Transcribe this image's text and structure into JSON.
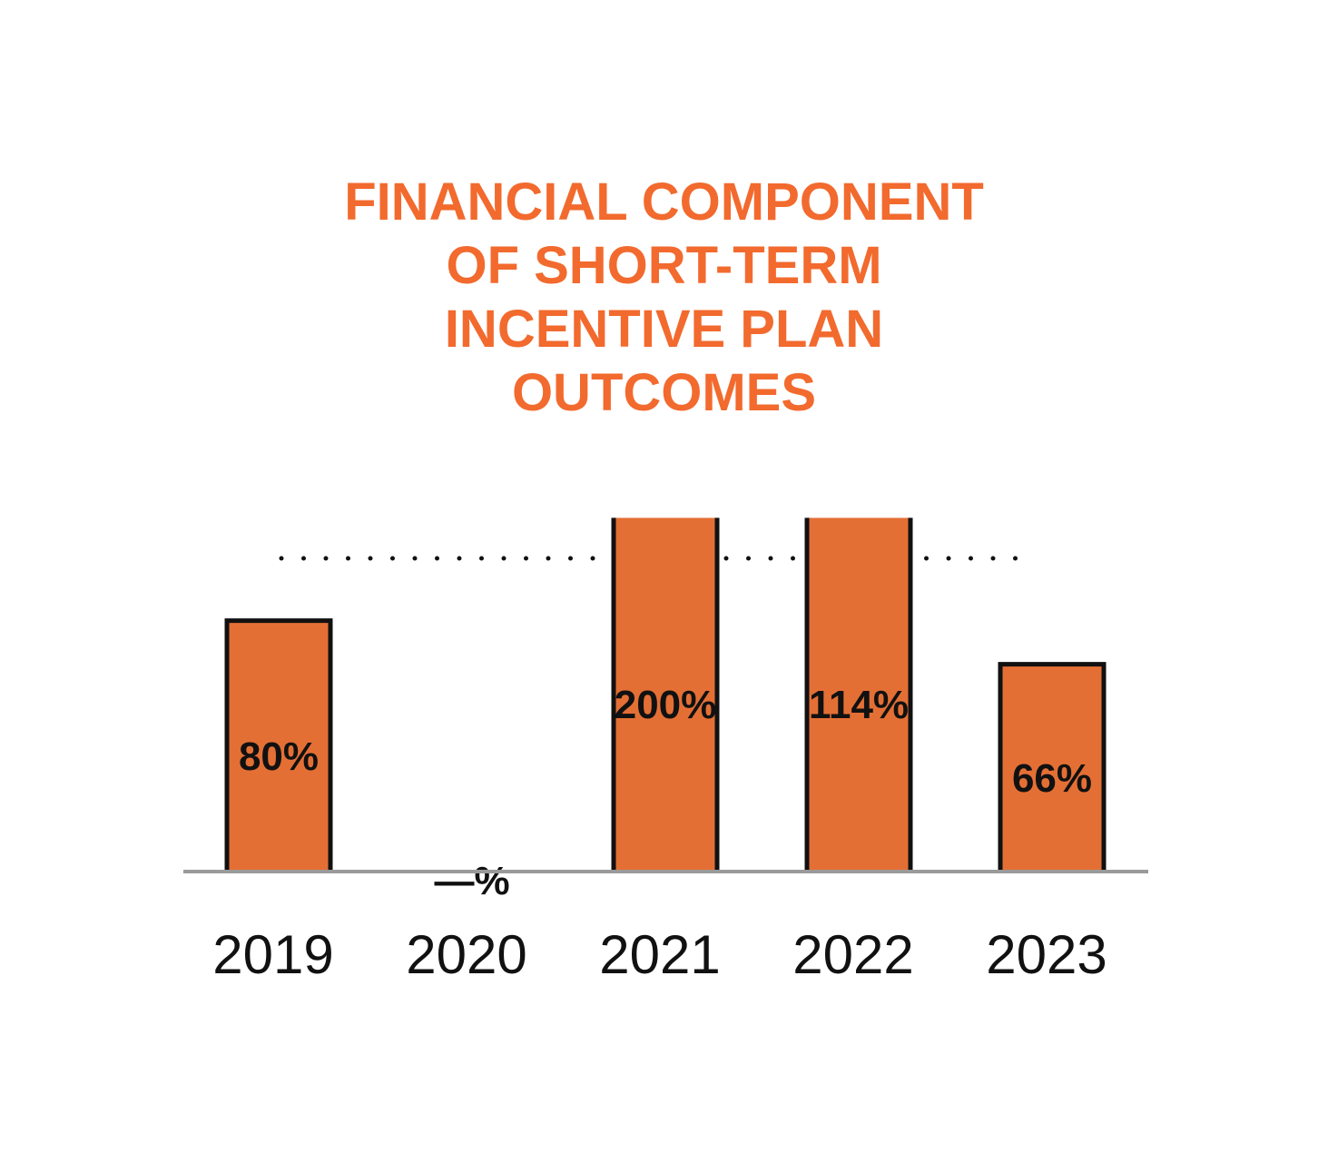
{
  "chart_data": {
    "type": "bar",
    "title_lines": [
      "FINANCIAL COMPONENT",
      "OF SHORT-TERM",
      "INCENTIVE PLAN",
      "OUTCOMES"
    ],
    "categories": [
      "2019",
      "2020",
      "2021",
      "2022",
      "2023"
    ],
    "values": [
      80,
      0,
      200,
      114,
      66
    ],
    "data_labels": [
      "80%",
      "—%",
      "200%",
      "114%",
      "66%"
    ],
    "reference_line": {
      "value": 100,
      "style": "dotted"
    },
    "ylim": [
      0,
      113
    ],
    "xlabel": "",
    "ylabel": "",
    "grid": false,
    "colors": {
      "title": "#F26A2E",
      "bar": "#E46F35",
      "bar_outline": "#111111",
      "baseline": "#9a9a9a",
      "text": "#111111"
    }
  }
}
